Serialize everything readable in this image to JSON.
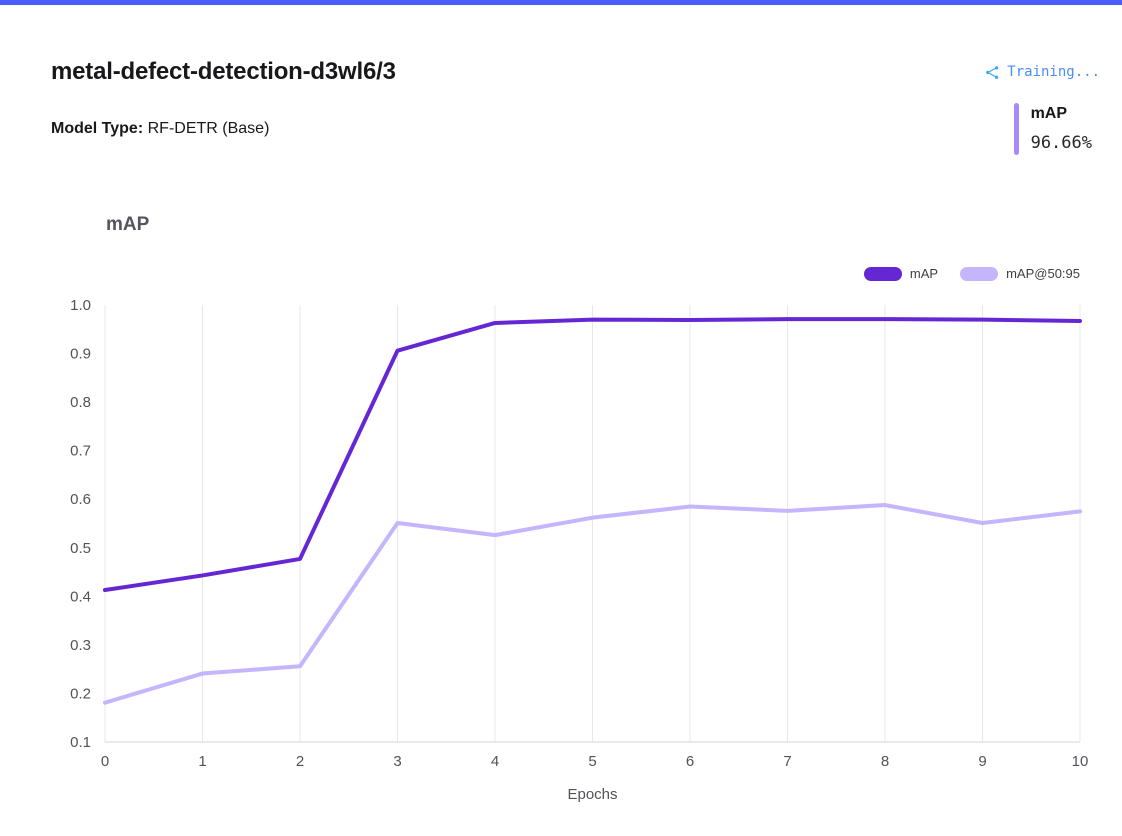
{
  "header": {
    "title": "metal-defect-detection-d3wl6/3",
    "status": "Training...",
    "model_type_label": "Model Type:",
    "model_type_value": "RF-DETR (Base)"
  },
  "metric": {
    "label": "mAP",
    "value": "96.66%"
  },
  "colors": {
    "accent_bar": "#4a5cf6",
    "status_text": "#4b8df6",
    "status_icon": "#38a8f0",
    "metric_bar": "#a78bfa",
    "gridline": "#e7e7f0",
    "axis_line": "#d4d4dc",
    "tick_label": "#52525b"
  },
  "chart_data": {
    "type": "line",
    "title": "mAP",
    "xlabel": "Epochs",
    "ylabel": "",
    "x": [
      0,
      1,
      2,
      3,
      4,
      5,
      6,
      7,
      8,
      9,
      10
    ],
    "ylim": [
      0.1,
      1.0
    ],
    "yticks": [
      0.1,
      0.2,
      0.3,
      0.4,
      0.5,
      0.6,
      0.7,
      0.8,
      0.9,
      1.0
    ],
    "grid": "vertical",
    "legend_position": "top-right",
    "series": [
      {
        "name": "mAP",
        "color": "#6527d3",
        "values": [
          0.413,
          0.443,
          0.477,
          0.906,
          0.963,
          0.97,
          0.969,
          0.971,
          0.971,
          0.97,
          0.967
        ]
      },
      {
        "name": "mAP@50:95",
        "color": "#c4b5fd",
        "values": [
          0.181,
          0.241,
          0.256,
          0.551,
          0.526,
          0.562,
          0.585,
          0.576,
          0.588,
          0.551,
          0.575
        ]
      }
    ]
  }
}
